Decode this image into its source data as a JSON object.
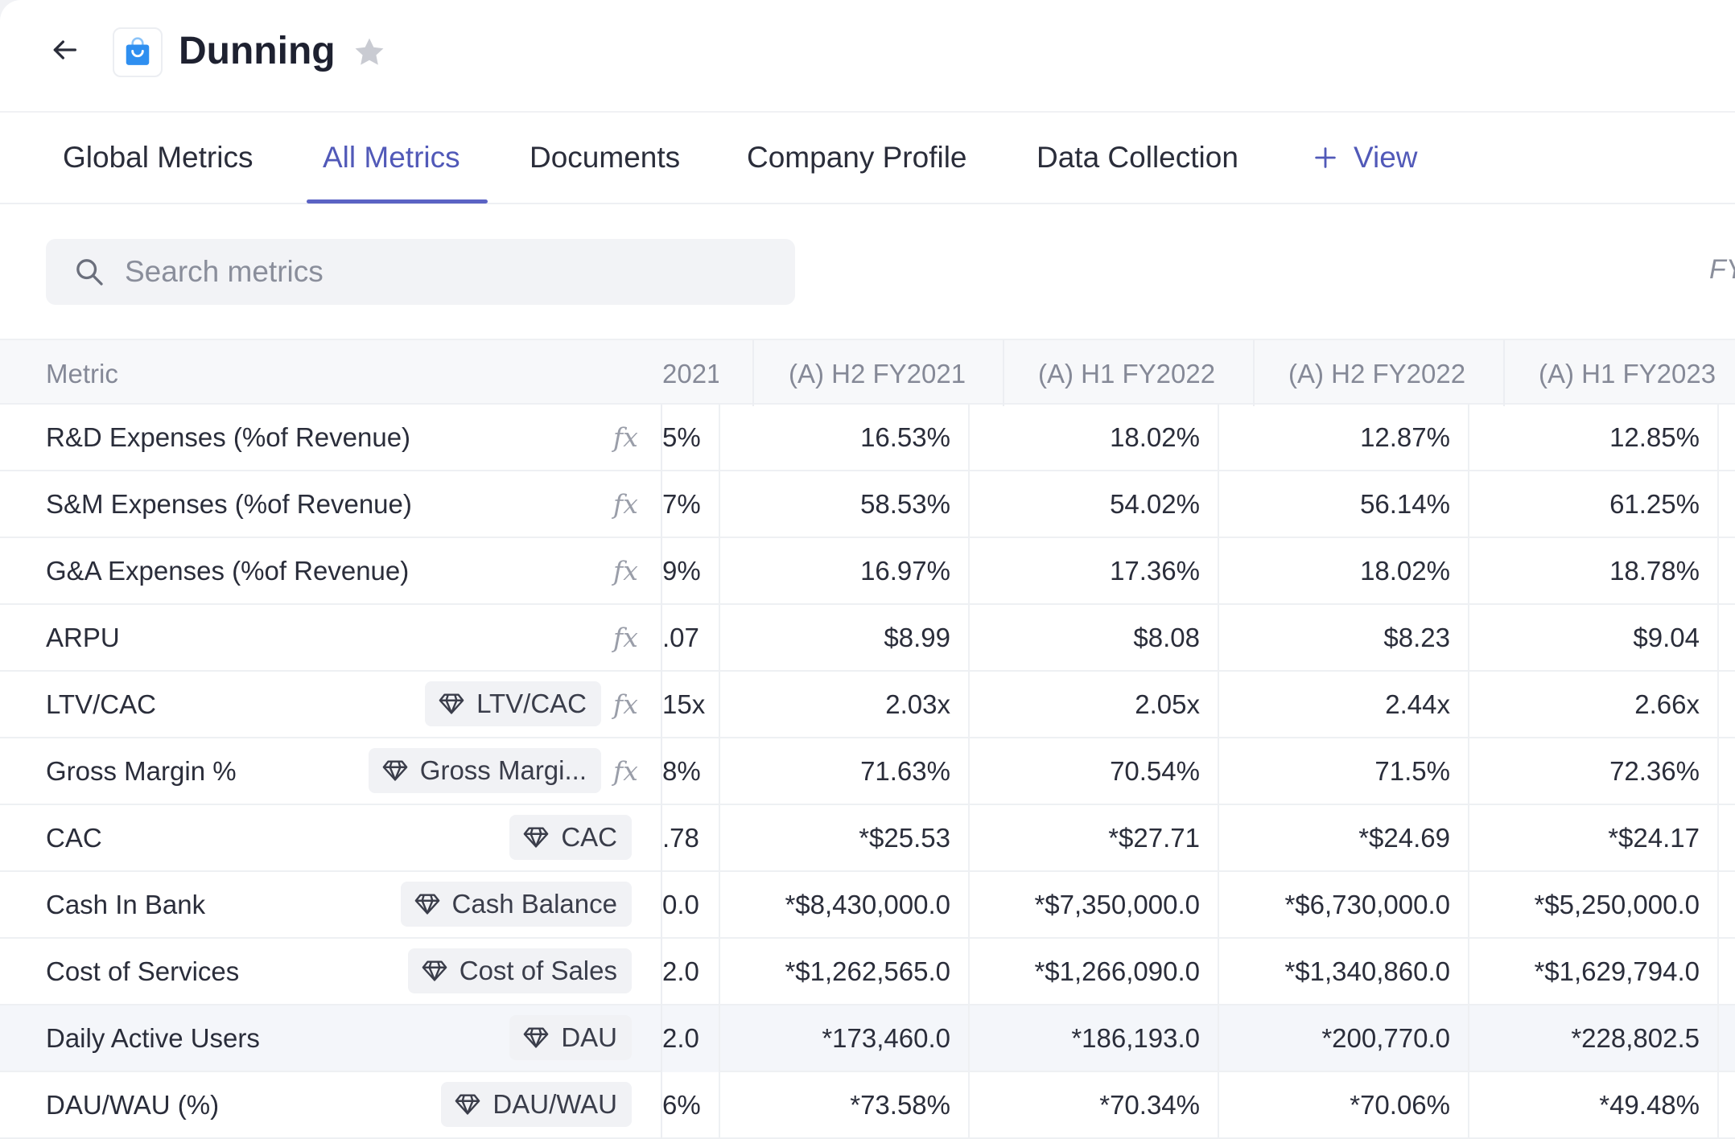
{
  "header": {
    "title": "Dunning",
    "app_icon": "shopping-bag-icon",
    "accent_color": "#2f8ff0"
  },
  "tabs": [
    {
      "label": "Global Metrics",
      "active": false
    },
    {
      "label": "All Metrics",
      "active": true
    },
    {
      "label": "Documents",
      "active": false
    },
    {
      "label": "Company Profile",
      "active": false
    },
    {
      "label": "Data Collection",
      "active": false
    }
  ],
  "add_view_label": "View",
  "search": {
    "placeholder": "Search metrics",
    "value": ""
  },
  "period_filter_label": "FY",
  "table": {
    "metric_header": "Metric",
    "columns": [
      "2021",
      "(A) H2 FY2021",
      "(A) H1 FY2022",
      "(A) H2 FY2022",
      "(A) H1 FY2023"
    ],
    "rows": [
      {
        "name": "R&D Expenses (%of Revenue)",
        "badge": "",
        "formula": true,
        "values": [
          "5%",
          "16.53%",
          "18.02%",
          "12.87%",
          "12.85%"
        ]
      },
      {
        "name": "S&M Expenses (%of Revenue)",
        "badge": "",
        "formula": true,
        "values": [
          "7%",
          "58.53%",
          "54.02%",
          "56.14%",
          "61.25%"
        ]
      },
      {
        "name": "G&A Expenses (%of Revenue)",
        "badge": "",
        "formula": true,
        "values": [
          "9%",
          "16.97%",
          "17.36%",
          "18.02%",
          "18.78%"
        ]
      },
      {
        "name": "ARPU",
        "badge": "",
        "formula": true,
        "values": [
          ".07",
          "$8.99",
          "$8.08",
          "$8.23",
          "$9.04"
        ]
      },
      {
        "name": "LTV/CAC",
        "badge": "LTV/CAC",
        "formula": true,
        "values": [
          "15x",
          "2.03x",
          "2.05x",
          "2.44x",
          "2.66x"
        ]
      },
      {
        "name": "Gross Margin %",
        "badge": "Gross Margi...",
        "formula": true,
        "values": [
          "8%",
          "71.63%",
          "70.54%",
          "71.5%",
          "72.36%"
        ]
      },
      {
        "name": "CAC",
        "badge": "CAC",
        "formula": false,
        "values": [
          ".78",
          "*$25.53",
          "*$27.71",
          "*$24.69",
          "*$24.17"
        ]
      },
      {
        "name": "Cash In Bank",
        "badge": "Cash Balance",
        "formula": false,
        "values": [
          "0.0",
          "*$8,430,000.0",
          "*$7,350,000.0",
          "*$6,730,000.0",
          "*$5,250,000.0"
        ]
      },
      {
        "name": "Cost of Services",
        "badge": "Cost of Sales",
        "formula": false,
        "values": [
          "2.0",
          "*$1,262,565.0",
          "*$1,266,090.0",
          "*$1,340,860.0",
          "*$1,629,794.0"
        ]
      },
      {
        "name": "Daily Active Users",
        "badge": "DAU",
        "formula": false,
        "values": [
          "2.0",
          "*173,460.0",
          "*186,193.0",
          "*200,770.0",
          "*228,802.5"
        ]
      },
      {
        "name": "DAU/WAU (%)",
        "badge": "DAU/WAU",
        "formula": false,
        "values": [
          "6%",
          "*73.58%",
          "*70.34%",
          "*70.06%",
          "*49.48%"
        ]
      }
    ]
  }
}
